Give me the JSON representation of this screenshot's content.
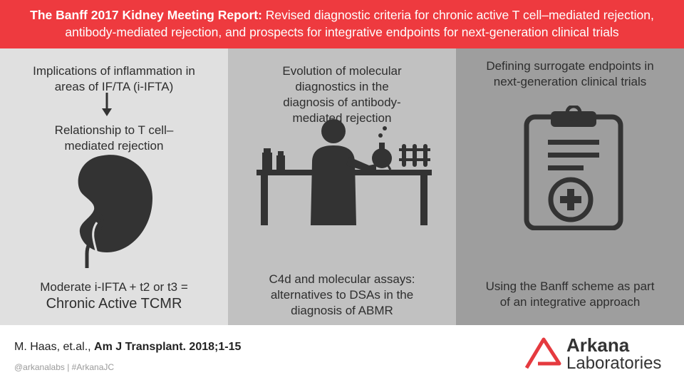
{
  "header": {
    "title_bold": "The Banff 2017 Kidney Meeting Report:",
    "title_rest": " Revised diagnostic criteria for chronic active T cell–mediated rejection,",
    "line2": "antibody-mediated rejection, and prospects for integrative endpoints for next-generation clinical trials"
  },
  "col1": {
    "top_text": "Implications of inflammation in areas of IF/TA (i-IFTA)",
    "mid_text": "Relationship to T cell–mediated rejection",
    "bottom_line1": "Moderate i-IFTA + t2 or t3 =",
    "bottom_line2": "Chronic Active TCMR"
  },
  "col2": {
    "top_text": "Evolution of molecular diagnostics in the diagnosis of antibody-mediated rejection",
    "bottom_text": "C4d and molecular assays: alternatives to DSAs in the diagnosis of ABMR"
  },
  "col3": {
    "top_text": "Defining surrogate endpoints in next-generation clinical trials",
    "bottom_text": "Using the Banff scheme as part of an integrative approach"
  },
  "footer": {
    "authors": "M. Haas, et.al.,",
    "journal": "Am J Transplant. 2018;1-15",
    "handles": "@arkanalabs  |  #ArkanaJC",
    "brand_line1": "Arkana",
    "brand_line2": "Laboratories"
  },
  "colors": {
    "banner": "#ee3a3f",
    "icon": "#333333",
    "logo_red": "#e53a3f"
  }
}
